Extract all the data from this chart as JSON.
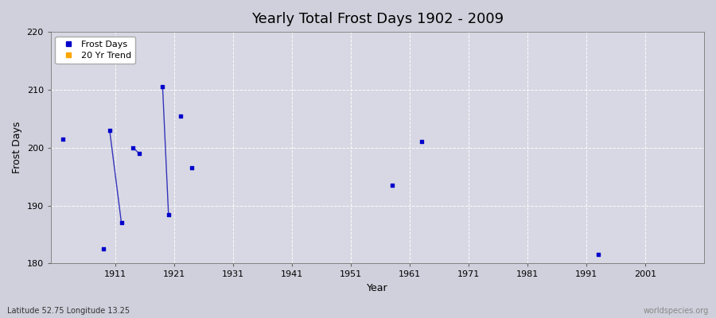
{
  "title": "Yearly Total Frost Days 1902 - 2009",
  "xlabel": "Year",
  "ylabel": "Frost Days",
  "xlim": [
    1900,
    2011
  ],
  "ylim": [
    180,
    220
  ],
  "yticks": [
    180,
    190,
    200,
    210,
    220
  ],
  "xticks": [
    1911,
    1921,
    1931,
    1941,
    1951,
    1961,
    1971,
    1981,
    1991,
    2001
  ],
  "fig_background": "#d0d0dc",
  "plot_background": "#d8d8e4",
  "grid_color": "#ffffff",
  "scatter_color": "#0000cc",
  "line_color": "#3333bb",
  "scatter_points": [
    [
      1902,
      201.5
    ],
    [
      1909,
      182.5
    ],
    [
      1910,
      203
    ],
    [
      1912,
      187
    ],
    [
      1914,
      200
    ],
    [
      1915,
      199
    ],
    [
      1919,
      210.5
    ],
    [
      1920,
      188.5
    ],
    [
      1922,
      205.5
    ],
    [
      1924,
      196.5
    ],
    [
      1958,
      193.5
    ],
    [
      1963,
      201
    ],
    [
      1993,
      181.5
    ]
  ],
  "line_segments": [
    [
      [
        1910,
        203
      ],
      [
        1912,
        187
      ]
    ],
    [
      [
        1914,
        200
      ],
      [
        1915,
        199
      ]
    ],
    [
      [
        1919,
        210.5
      ],
      [
        1920,
        188.5
      ]
    ]
  ],
  "legend_labels": [
    "Frost Days",
    "20 Yr Trend"
  ],
  "legend_colors": [
    "#0000cc",
    "#ffa500"
  ],
  "subtitle": "Latitude 52.75 Longitude 13.25",
  "watermark": "worldspecies.org",
  "title_fontsize": 13,
  "axis_fontsize": 9,
  "tick_fontsize": 8,
  "legend_fontsize": 8,
  "marker_size": 6,
  "line_width": 1.0
}
